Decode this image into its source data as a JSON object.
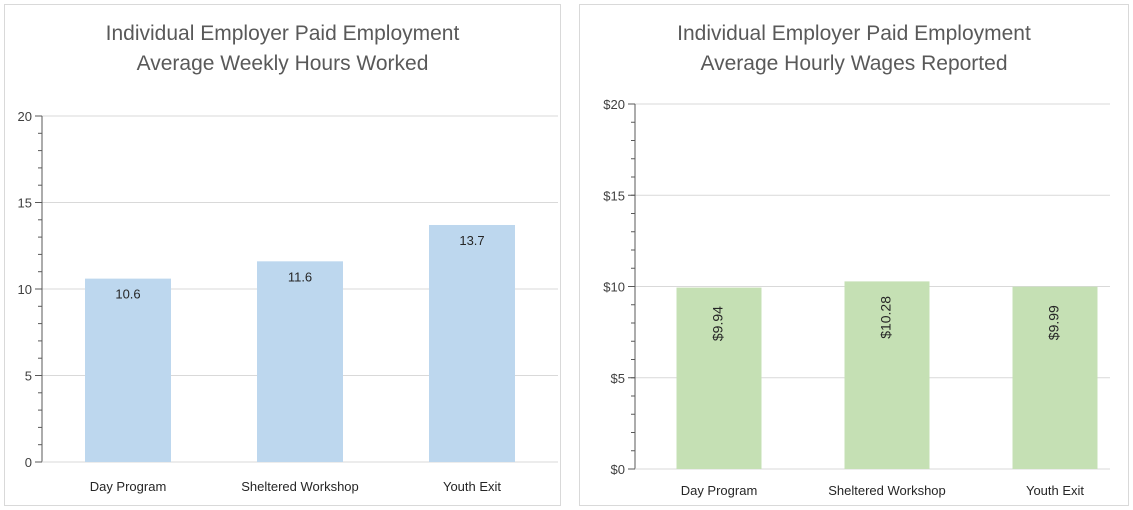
{
  "chart_data": [
    {
      "type": "bar",
      "title_line1": "Individual Employer Paid Employment",
      "title_line2": "Average Weekly Hours Worked",
      "categories": [
        "Day Program",
        "Sheltered Workshop",
        "Youth Exit"
      ],
      "values": [
        10.6,
        11.6,
        13.7
      ],
      "data_labels": [
        "10.6",
        "11.6",
        "13.7"
      ],
      "y_ticks": [
        "0",
        "5",
        "10",
        "15",
        "20"
      ],
      "ylim": [
        0,
        20
      ],
      "bar_color": "#bdd7ee",
      "label_rotation": "horizontal",
      "grid": true,
      "xlabel": "",
      "ylabel": ""
    },
    {
      "type": "bar",
      "title_line1": "Individual Employer Paid Employment",
      "title_line2": "Average Hourly Wages Reported",
      "categories": [
        "Day Program",
        "Sheltered Workshop",
        "Youth Exit"
      ],
      "values": [
        9.94,
        10.28,
        9.99
      ],
      "data_labels": [
        "$9.94",
        "$10.28",
        "$9.99"
      ],
      "y_ticks": [
        "$0",
        "$5",
        "$10",
        "$15",
        "$20"
      ],
      "ylim": [
        0,
        20
      ],
      "bar_color": "#c5e0b4",
      "label_rotation": "vertical",
      "grid": true,
      "xlabel": "",
      "ylabel": ""
    }
  ]
}
